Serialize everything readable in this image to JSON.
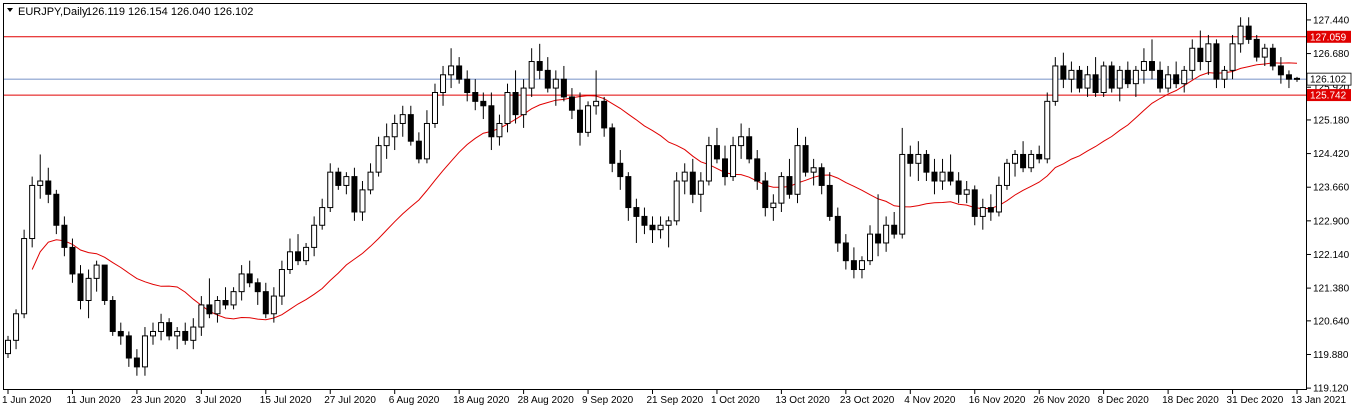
{
  "header": {
    "symbol_label": "EURJPY,Daily",
    "ohlc_values": "126.119 126.154 126.040 126.102"
  },
  "chart_data": {
    "type": "candlestick",
    "symbol": "EURJPY",
    "timeframe": "Daily",
    "ylim": [
      119.1,
      127.8
    ],
    "y_ticks": [
      "127.440",
      "126.680",
      "125.920",
      "125.180",
      "124.420",
      "123.660",
      "122.900",
      "122.140",
      "121.380",
      "120.640",
      "119.880",
      "119.120"
    ],
    "x_ticks": [
      "1 Jun 2020",
      "11 Jun 2020",
      "23 Jun 2020",
      "3 Jul 2020",
      "15 Jul 2020",
      "27 Jul 2020",
      "6 Aug 2020",
      "18 Aug 2020",
      "28 Aug 2020",
      "9 Sep 2020",
      "21 Sep 2020",
      "1 Oct 2020",
      "13 Oct 2020",
      "23 Oct 2020",
      "4 Nov 2020",
      "16 Nov 2020",
      "26 Nov 2020",
      "8 Dec 2020",
      "18 Dec 2020",
      "31 Dec 2020",
      "13 Jan 2021"
    ],
    "current_price": {
      "label": "126.102",
      "value": 126.102,
      "color": "#4a6fb5"
    },
    "horizontal_levels": [
      {
        "label": "127.059",
        "value": 127.059,
        "color": "#e00000"
      },
      {
        "label": "125.742",
        "value": 125.742,
        "color": "#e00000"
      }
    ],
    "moving_average": {
      "type": "SMA",
      "color": "#e00000"
    },
    "candle_colors": {
      "bull": "#ffffff",
      "bear": "#000000",
      "outline": "#000000"
    },
    "grid": false,
    "ohlc": [
      [
        119.9,
        120.3,
        119.8,
        120.2
      ],
      [
        120.2,
        120.9,
        120.0,
        120.8
      ],
      [
        120.8,
        122.7,
        120.7,
        122.5
      ],
      [
        122.5,
        123.9,
        122.3,
        123.7
      ],
      [
        123.7,
        124.4,
        123.4,
        123.8
      ],
      [
        123.8,
        124.1,
        123.3,
        123.5
      ],
      [
        123.5,
        123.6,
        122.6,
        122.8
      ],
      [
        122.8,
        123.0,
        122.1,
        122.3
      ],
      [
        122.3,
        122.5,
        121.5,
        121.7
      ],
      [
        121.7,
        121.9,
        120.9,
        121.1
      ],
      [
        121.1,
        121.8,
        120.7,
        121.6
      ],
      [
        121.6,
        122.0,
        121.3,
        121.9
      ],
      [
        121.9,
        121.9,
        121.0,
        121.1
      ],
      [
        121.1,
        121.2,
        120.3,
        120.4
      ],
      [
        120.4,
        120.6,
        120.1,
        120.3
      ],
      [
        120.3,
        120.4,
        119.6,
        119.8
      ],
      [
        119.8,
        120.0,
        119.4,
        119.6
      ],
      [
        119.6,
        120.5,
        119.4,
        120.3
      ],
      [
        120.3,
        120.6,
        120.1,
        120.4
      ],
      [
        120.4,
        120.8,
        120.2,
        120.6
      ],
      [
        120.6,
        120.7,
        120.2,
        120.3
      ],
      [
        120.3,
        120.5,
        120.0,
        120.4
      ],
      [
        120.4,
        120.6,
        120.1,
        120.2
      ],
      [
        120.2,
        120.7,
        120.0,
        120.5
      ],
      [
        120.5,
        121.2,
        120.3,
        121.0
      ],
      [
        121.0,
        121.6,
        120.7,
        120.8
      ],
      [
        120.8,
        121.2,
        120.6,
        121.1
      ],
      [
        121.1,
        121.4,
        120.9,
        121.0
      ],
      [
        121.0,
        121.4,
        120.9,
        121.3
      ],
      [
        121.3,
        121.9,
        121.1,
        121.7
      ],
      [
        121.7,
        122.0,
        121.4,
        121.5
      ],
      [
        121.5,
        121.6,
        121.0,
        121.3
      ],
      [
        121.3,
        121.5,
        120.7,
        120.8
      ],
      [
        120.8,
        121.4,
        120.6,
        121.2
      ],
      [
        121.2,
        122.0,
        121.0,
        121.8
      ],
      [
        121.8,
        122.5,
        121.7,
        122.2
      ],
      [
        122.2,
        122.6,
        121.9,
        122.0
      ],
      [
        122.0,
        122.4,
        121.9,
        122.3
      ],
      [
        122.3,
        123.0,
        122.1,
        122.8
      ],
      [
        122.8,
        123.4,
        122.7,
        123.2
      ],
      [
        123.2,
        124.2,
        123.1,
        124.0
      ],
      [
        124.0,
        124.1,
        123.6,
        123.7
      ],
      [
        123.7,
        124.0,
        123.5,
        123.9
      ],
      [
        123.9,
        124.1,
        122.9,
        123.1
      ],
      [
        123.1,
        123.8,
        122.9,
        123.6
      ],
      [
        123.6,
        124.2,
        123.5,
        124.0
      ],
      [
        124.0,
        124.8,
        123.9,
        124.6
      ],
      [
        124.6,
        125.1,
        124.3,
        124.8
      ],
      [
        124.8,
        125.3,
        124.5,
        125.1
      ],
      [
        125.1,
        125.5,
        124.8,
        125.3
      ],
      [
        125.3,
        125.5,
        124.6,
        124.7
      ],
      [
        124.7,
        124.9,
        124.2,
        124.3
      ],
      [
        124.3,
        125.4,
        124.2,
        125.1
      ],
      [
        125.1,
        126.0,
        125.0,
        125.8
      ],
      [
        125.8,
        126.4,
        125.5,
        126.2
      ],
      [
        126.2,
        126.8,
        125.9,
        126.4
      ],
      [
        126.4,
        126.6,
        126.0,
        126.1
      ],
      [
        126.1,
        126.3,
        125.6,
        125.8
      ],
      [
        125.8,
        126.1,
        125.4,
        125.6
      ],
      [
        125.6,
        125.8,
        125.2,
        125.5
      ],
      [
        125.5,
        125.8,
        124.5,
        124.8
      ],
      [
        124.8,
        125.3,
        124.6,
        125.1
      ],
      [
        125.1,
        126.0,
        124.9,
        125.8
      ],
      [
        125.8,
        126.3,
        125.1,
        125.3
      ],
      [
        125.3,
        126.1,
        125.0,
        125.9
      ],
      [
        125.9,
        126.8,
        125.7,
        126.5
      ],
      [
        126.5,
        126.9,
        126.1,
        126.3
      ],
      [
        126.3,
        126.6,
        125.8,
        125.9
      ],
      [
        125.9,
        126.3,
        125.5,
        126.1
      ],
      [
        126.1,
        126.4,
        125.6,
        125.7
      ],
      [
        125.7,
        125.9,
        125.2,
        125.4
      ],
      [
        125.4,
        125.8,
        124.6,
        124.9
      ],
      [
        124.9,
        125.6,
        124.8,
        125.5
      ],
      [
        125.5,
        126.3,
        125.3,
        125.6
      ],
      [
        125.6,
        125.7,
        124.8,
        125.0
      ],
      [
        125.0,
        125.1,
        124.0,
        124.2
      ],
      [
        124.2,
        124.5,
        123.6,
        123.9
      ],
      [
        123.9,
        124.0,
        122.9,
        123.2
      ],
      [
        123.2,
        123.4,
        122.4,
        123.0
      ],
      [
        123.0,
        123.2,
        122.6,
        122.8
      ],
      [
        122.8,
        123.0,
        122.4,
        122.7
      ],
      [
        122.7,
        123.0,
        122.5,
        122.8
      ],
      [
        122.8,
        123.0,
        122.3,
        122.9
      ],
      [
        122.9,
        124.0,
        122.8,
        123.8
      ],
      [
        123.8,
        124.2,
        123.5,
        124.0
      ],
      [
        124.0,
        124.3,
        123.3,
        123.5
      ],
      [
        123.5,
        124.0,
        123.1,
        123.8
      ],
      [
        123.8,
        124.8,
        123.7,
        124.6
      ],
      [
        124.6,
        125.0,
        124.2,
        124.3
      ],
      [
        124.3,
        124.6,
        123.7,
        123.9
      ],
      [
        123.9,
        124.8,
        123.8,
        124.6
      ],
      [
        124.6,
        125.1,
        124.3,
        124.8
      ],
      [
        124.8,
        125.0,
        124.2,
        124.3
      ],
      [
        124.3,
        124.5,
        123.6,
        123.8
      ],
      [
        123.8,
        124.0,
        123.0,
        123.2
      ],
      [
        123.2,
        123.5,
        122.9,
        123.3
      ],
      [
        123.3,
        124.0,
        123.1,
        123.9
      ],
      [
        123.9,
        124.3,
        123.4,
        123.5
      ],
      [
        123.5,
        125.0,
        123.3,
        124.6
      ],
      [
        124.6,
        124.8,
        123.9,
        124.0
      ],
      [
        124.0,
        124.3,
        123.7,
        124.1
      ],
      [
        124.1,
        124.2,
        123.5,
        123.7
      ],
      [
        123.7,
        124.0,
        122.9,
        123.0
      ],
      [
        123.0,
        123.2,
        122.2,
        122.4
      ],
      [
        122.4,
        122.6,
        121.8,
        122.0
      ],
      [
        122.0,
        122.3,
        121.6,
        121.8
      ],
      [
        121.8,
        122.1,
        121.6,
        122.0
      ],
      [
        122.0,
        122.8,
        121.9,
        122.6
      ],
      [
        122.6,
        123.5,
        122.1,
        122.4
      ],
      [
        122.4,
        123.0,
        122.2,
        122.8
      ],
      [
        122.8,
        123.1,
        122.5,
        122.6
      ],
      [
        122.6,
        125.0,
        122.5,
        124.4
      ],
      [
        124.4,
        124.6,
        123.9,
        124.2
      ],
      [
        124.2,
        124.7,
        123.8,
        124.4
      ],
      [
        124.4,
        124.5,
        123.8,
        124.0
      ],
      [
        124.0,
        124.3,
        123.5,
        123.8
      ],
      [
        123.8,
        124.3,
        123.6,
        124.0
      ],
      [
        124.0,
        124.4,
        123.7,
        123.8
      ],
      [
        123.8,
        124.0,
        123.3,
        123.5
      ],
      [
        123.5,
        123.8,
        123.3,
        123.6
      ],
      [
        123.6,
        123.7,
        122.8,
        123.0
      ],
      [
        123.0,
        123.4,
        122.7,
        123.2
      ],
      [
        123.2,
        123.5,
        122.9,
        123.1
      ],
      [
        123.1,
        123.9,
        123.0,
        123.7
      ],
      [
        123.7,
        124.3,
        123.6,
        124.2
      ],
      [
        124.2,
        124.5,
        123.9,
        124.4
      ],
      [
        124.4,
        124.7,
        124.0,
        124.1
      ],
      [
        124.1,
        124.5,
        124.0,
        124.4
      ],
      [
        124.4,
        124.6,
        124.2,
        124.3
      ],
      [
        124.3,
        125.8,
        124.2,
        125.6
      ],
      [
        125.6,
        126.6,
        125.5,
        126.4
      ],
      [
        126.4,
        126.7,
        125.9,
        126.1
      ],
      [
        126.1,
        126.5,
        125.8,
        126.3
      ],
      [
        126.3,
        126.4,
        125.8,
        125.9
      ],
      [
        125.9,
        126.4,
        125.7,
        126.2
      ],
      [
        126.2,
        126.6,
        125.7,
        125.8
      ],
      [
        125.8,
        126.5,
        125.7,
        126.4
      ],
      [
        126.4,
        126.5,
        125.8,
        125.9
      ],
      [
        125.9,
        126.4,
        125.6,
        126.3
      ],
      [
        126.3,
        126.5,
        125.9,
        126.0
      ],
      [
        126.0,
        126.4,
        125.7,
        126.3
      ],
      [
        126.3,
        126.8,
        126.0,
        126.5
      ],
      [
        126.5,
        127.0,
        126.1,
        126.3
      ],
      [
        126.3,
        126.5,
        125.8,
        125.9
      ],
      [
        125.9,
        126.4,
        125.8,
        126.2
      ],
      [
        126.2,
        126.5,
        125.9,
        126.0
      ],
      [
        126.0,
        126.4,
        125.8,
        126.3
      ],
      [
        126.3,
        127.0,
        126.1,
        126.8
      ],
      [
        126.8,
        127.2,
        126.3,
        126.5
      ],
      [
        126.5,
        127.1,
        126.2,
        126.9
      ],
      [
        126.9,
        127.0,
        125.9,
        126.1
      ],
      [
        126.1,
        126.4,
        125.9,
        126.3
      ],
      [
        126.3,
        127.1,
        126.1,
        126.9
      ],
      [
        126.9,
        127.5,
        126.7,
        127.3
      ],
      [
        127.3,
        127.5,
        126.9,
        127.0
      ],
      [
        127.0,
        127.1,
        126.5,
        126.6
      ],
      [
        126.6,
        126.9,
        126.4,
        126.8
      ],
      [
        126.8,
        126.9,
        126.3,
        126.4
      ],
      [
        126.4,
        126.6,
        126.0,
        126.2
      ],
      [
        126.2,
        126.3,
        125.9,
        126.1
      ],
      [
        126.119,
        126.154,
        126.04,
        126.102
      ]
    ]
  }
}
